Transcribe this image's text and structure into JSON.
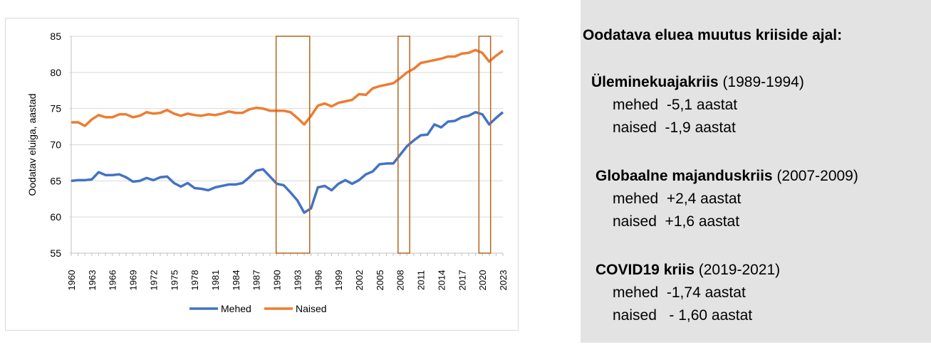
{
  "chart_data": {
    "type": "line",
    "ylabel": "Oodatav eluiga, aastad",
    "xlabel": "",
    "ylim": [
      55,
      85
    ],
    "yticks": [
      55,
      60,
      65,
      70,
      75,
      80,
      85
    ],
    "grid": true,
    "legend": "bottom",
    "x": [
      1960,
      1961,
      1962,
      1963,
      1964,
      1965,
      1966,
      1967,
      1968,
      1969,
      1970,
      1971,
      1972,
      1973,
      1974,
      1975,
      1976,
      1977,
      1978,
      1979,
      1980,
      1981,
      1982,
      1983,
      1984,
      1985,
      1986,
      1987,
      1988,
      1989,
      1990,
      1991,
      1992,
      1993,
      1994,
      1995,
      1996,
      1997,
      1998,
      1999,
      2000,
      2001,
      2002,
      2003,
      2004,
      2005,
      2006,
      2007,
      2008,
      2009,
      2010,
      2011,
      2012,
      2013,
      2014,
      2015,
      2016,
      2017,
      2018,
      2019,
      2020,
      2021,
      2022,
      2023
    ],
    "xticks": [
      "1960",
      "1963",
      "1966",
      "1969",
      "1972",
      "1975",
      "1978",
      "1981",
      "1984",
      "1987",
      "1990",
      "1993",
      "1996",
      "1999",
      "2002",
      "2005",
      "2008",
      "2011",
      "2014",
      "2017",
      "2020",
      "2023"
    ],
    "series": [
      {
        "name": "Mehed",
        "color": "#4472c4",
        "values": [
          65.0,
          65.1,
          65.1,
          65.2,
          66.2,
          65.8,
          65.8,
          65.9,
          65.5,
          64.9,
          65.0,
          65.4,
          65.1,
          65.5,
          65.6,
          64.7,
          64.2,
          64.7,
          64.0,
          63.9,
          63.7,
          64.1,
          64.3,
          64.5,
          64.5,
          64.7,
          65.5,
          66.4,
          66.6,
          65.6,
          64.6,
          64.4,
          63.4,
          62.3,
          60.6,
          61.2,
          64.1,
          64.3,
          63.7,
          64.6,
          65.1,
          64.6,
          65.1,
          65.9,
          66.3,
          67.3,
          67.4,
          67.4,
          68.6,
          69.8,
          70.6,
          71.3,
          71.4,
          72.8,
          72.4,
          73.2,
          73.3,
          73.8,
          74.0,
          74.5,
          74.2,
          72.8,
          73.7,
          74.5
        ]
      },
      {
        "name": "Naised",
        "color": "#ed7d31",
        "values": [
          73.1,
          73.1,
          72.6,
          73.5,
          74.1,
          73.8,
          73.8,
          74.2,
          74.2,
          73.8,
          74.0,
          74.5,
          74.3,
          74.4,
          74.8,
          74.3,
          74.0,
          74.3,
          74.1,
          74.0,
          74.2,
          74.1,
          74.3,
          74.6,
          74.4,
          74.4,
          74.9,
          75.1,
          75.0,
          74.7,
          74.7,
          74.7,
          74.5,
          73.7,
          72.8,
          74.0,
          75.4,
          75.7,
          75.3,
          75.8,
          76.0,
          76.2,
          77.0,
          76.9,
          77.8,
          78.1,
          78.3,
          78.5,
          79.2,
          80.0,
          80.5,
          81.3,
          81.5,
          81.7,
          81.9,
          82.2,
          82.2,
          82.6,
          82.7,
          83.1,
          82.7,
          81.5,
          82.3,
          83.0
        ]
      }
    ],
    "highlight_ranges": [
      [
        1989.9,
        1994.8
      ],
      [
        2007.7,
        2009.4
      ],
      [
        2019.5,
        2021.2
      ]
    ],
    "highlight_color": "#b5651d"
  },
  "panel": {
    "title": "Oodatava eluea muutus kriiside ajal:",
    "crises": [
      {
        "name": "Üleminekuajakriis",
        "years": "(1989-1994)",
        "men": "mehed  -5,1 aastat",
        "women": "naised  -1,9 aastat"
      },
      {
        "name": "Globaalne majanduskriis",
        "years": "(2007-2009)",
        "men": "mehed  +2,4 aastat",
        "women": "naised  +1,6 aastat"
      },
      {
        "name": "COVID19 kriis",
        "years": "(2019-2021)",
        "men": "mehed  -1,74 aastat",
        "women": "naised   - 1,60 aastat"
      }
    ]
  }
}
